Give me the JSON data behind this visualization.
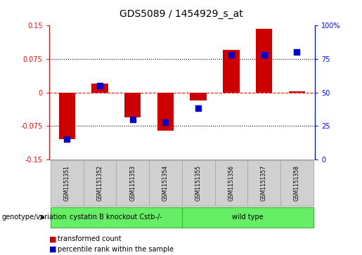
{
  "title": "GDS5089 / 1454929_s_at",
  "samples": [
    "GSM1151351",
    "GSM1151352",
    "GSM1151353",
    "GSM1151354",
    "GSM1151355",
    "GSM1151356",
    "GSM1151357",
    "GSM1151358"
  ],
  "transformed_count": [
    -0.105,
    0.02,
    -0.055,
    -0.085,
    -0.018,
    0.095,
    0.143,
    0.002
  ],
  "percentile_rank": [
    15,
    55,
    30,
    28,
    38,
    78,
    78,
    80
  ],
  "ylim_left": [
    -0.15,
    0.15
  ],
  "ylim_right": [
    0,
    100
  ],
  "yticks_left": [
    -0.15,
    -0.075,
    0,
    0.075,
    0.15
  ],
  "yticks_right": [
    0,
    25,
    50,
    75,
    100
  ],
  "ytick_labels_left": [
    "-0.15",
    "-0.075",
    "0",
    "0.075",
    "0.15"
  ],
  "ytick_labels_right": [
    "0",
    "25",
    "50",
    "75",
    "100%"
  ],
  "hlines": [
    0.075,
    0,
    -0.075
  ],
  "bar_color": "#cc0000",
  "dot_color": "#0000cc",
  "group1_label": "cystatin B knockout Cstb-/-",
  "group2_label": "wild type",
  "group1_indices": [
    0,
    1,
    2,
    3
  ],
  "group2_indices": [
    4,
    5,
    6,
    7
  ],
  "group_color": "#66ee66",
  "genotype_label": "genotype/variation",
  "legend1": "transformed count",
  "legend2": "percentile rank within the sample",
  "legend_color1": "#cc0000",
  "legend_color2": "#0000cc",
  "bar_width": 0.5,
  "dot_size": 40,
  "background_color": "#ffffff",
  "plot_bg_color": "#ffffff",
  "label_bg_color": "#d0d0d0",
  "label_edge_color": "#aaaaaa"
}
